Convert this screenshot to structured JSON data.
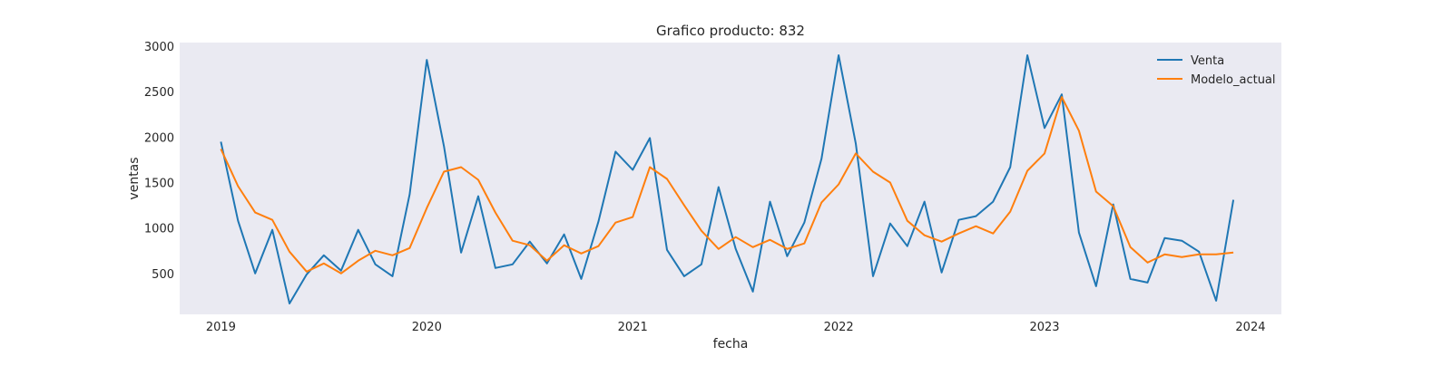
{
  "chart_data": {
    "type": "line",
    "title": "Grafico producto: 832",
    "xlabel": "fecha",
    "ylabel": "ventas",
    "x_start": "2019-01",
    "x_step": "month",
    "xlim": [
      2018.8,
      2024.15
    ],
    "ylim": [
      50,
      3040
    ],
    "xticks": [
      {
        "value": 2019,
        "label": "2019"
      },
      {
        "value": 2020,
        "label": "2020"
      },
      {
        "value": 2021,
        "label": "2021"
      },
      {
        "value": 2022,
        "label": "2022"
      },
      {
        "value": 2023,
        "label": "2023"
      },
      {
        "value": 2024,
        "label": "2024"
      }
    ],
    "yticks": [
      {
        "value": 500,
        "label": "500"
      },
      {
        "value": 1000,
        "label": "1000"
      },
      {
        "value": 1500,
        "label": "1500"
      },
      {
        "value": 2000,
        "label": "2000"
      },
      {
        "value": 2500,
        "label": "2500"
      },
      {
        "value": 3000,
        "label": "3000"
      }
    ],
    "grid": false,
    "legend_position": "top-right",
    "plot_background": "#eaeaf2",
    "series": [
      {
        "name": "Venta",
        "color": "#1f77b4",
        "values": [
          1950,
          1080,
          500,
          980,
          170,
          490,
          700,
          530,
          980,
          600,
          470,
          1370,
          2850,
          1900,
          730,
          1350,
          560,
          600,
          850,
          610,
          930,
          440,
          1070,
          1840,
          1640,
          1990,
          760,
          470,
          600,
          1450,
          770,
          300,
          1290,
          690,
          1060,
          1760,
          2900,
          1930,
          470,
          1050,
          800,
          1290,
          510,
          1090,
          1130,
          1290,
          1670,
          2900,
          2100,
          2470,
          950,
          360,
          1260,
          440,
          400,
          890,
          860,
          740,
          200,
          1310
        ]
      },
      {
        "name": "Modelo_actual",
        "color": "#ff7f0e",
        "values": [
          1870,
          1460,
          1170,
          1090,
          740,
          520,
          610,
          500,
          640,
          750,
          700,
          780,
          1220,
          1620,
          1670,
          1530,
          1170,
          860,
          810,
          640,
          810,
          720,
          800,
          1060,
          1120,
          1670,
          1540,
          1250,
          970,
          770,
          900,
          790,
          870,
          770,
          830,
          1280,
          1480,
          1820,
          1620,
          1500,
          1080,
          920,
          850,
          940,
          1020,
          940,
          1180,
          1630,
          1820,
          2440,
          2070,
          1400,
          1240,
          790,
          620,
          710,
          680,
          710,
          710,
          730
        ]
      }
    ]
  }
}
